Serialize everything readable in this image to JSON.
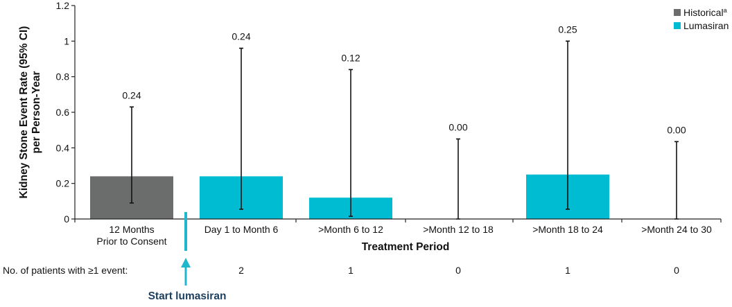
{
  "chart_data": {
    "type": "bar",
    "title": "",
    "xlabel": "Treatment Period",
    "ylabel_line1": "Kidney Stone Event Rate (95% CI)",
    "ylabel_line2": "per Person-Year",
    "ylim": [
      0,
      1.2
    ],
    "yticks": [
      "0",
      "0.2",
      "0.4",
      "0.6",
      "0.8",
      "1",
      "1.2"
    ],
    "ytick_values": [
      0,
      0.2,
      0.4,
      0.6,
      0.8,
      1.0,
      1.2
    ],
    "categories": [
      [
        "12 Months",
        "Prior to Consent"
      ],
      [
        "Day 1 to Month 6"
      ],
      [
        ">Month 6 to 12"
      ],
      [
        ">Month 12 to 18"
      ],
      [
        ">Month 18 to 24"
      ],
      [
        ">Month 24 to 30"
      ]
    ],
    "values": [
      0.24,
      0.24,
      0.12,
      0.0,
      0.25,
      0.0
    ],
    "value_labels": [
      "0.24",
      "0.24",
      "0.12",
      "0.00",
      "0.25",
      "0.00"
    ],
    "ci_lower": [
      0.09,
      0.055,
      0.015,
      0.0,
      0.055,
      0.0
    ],
    "ci_upper": [
      0.63,
      0.96,
      0.84,
      0.45,
      1.0,
      0.435
    ],
    "series_of_bar": [
      "historical",
      "lumasiran",
      "lumasiran",
      "lumasiran",
      "lumasiran",
      "lumasiran"
    ],
    "legend": {
      "placement": "top-right",
      "items": [
        {
          "key": "historical",
          "label": "Historical",
          "superscript": "a",
          "color": "#6b6d6c"
        },
        {
          "key": "lumasiran",
          "label": "Lumasiran",
          "color": "#00bcd3"
        }
      ]
    },
    "grid": false,
    "patients_row": {
      "label": "No. of patients with ≥1 event:",
      "counts": [
        "",
        "2",
        "1",
        "0",
        "1",
        "0"
      ]
    },
    "start_marker": {
      "label": "Start lumasiran",
      "color": "#1fb7cc"
    }
  }
}
